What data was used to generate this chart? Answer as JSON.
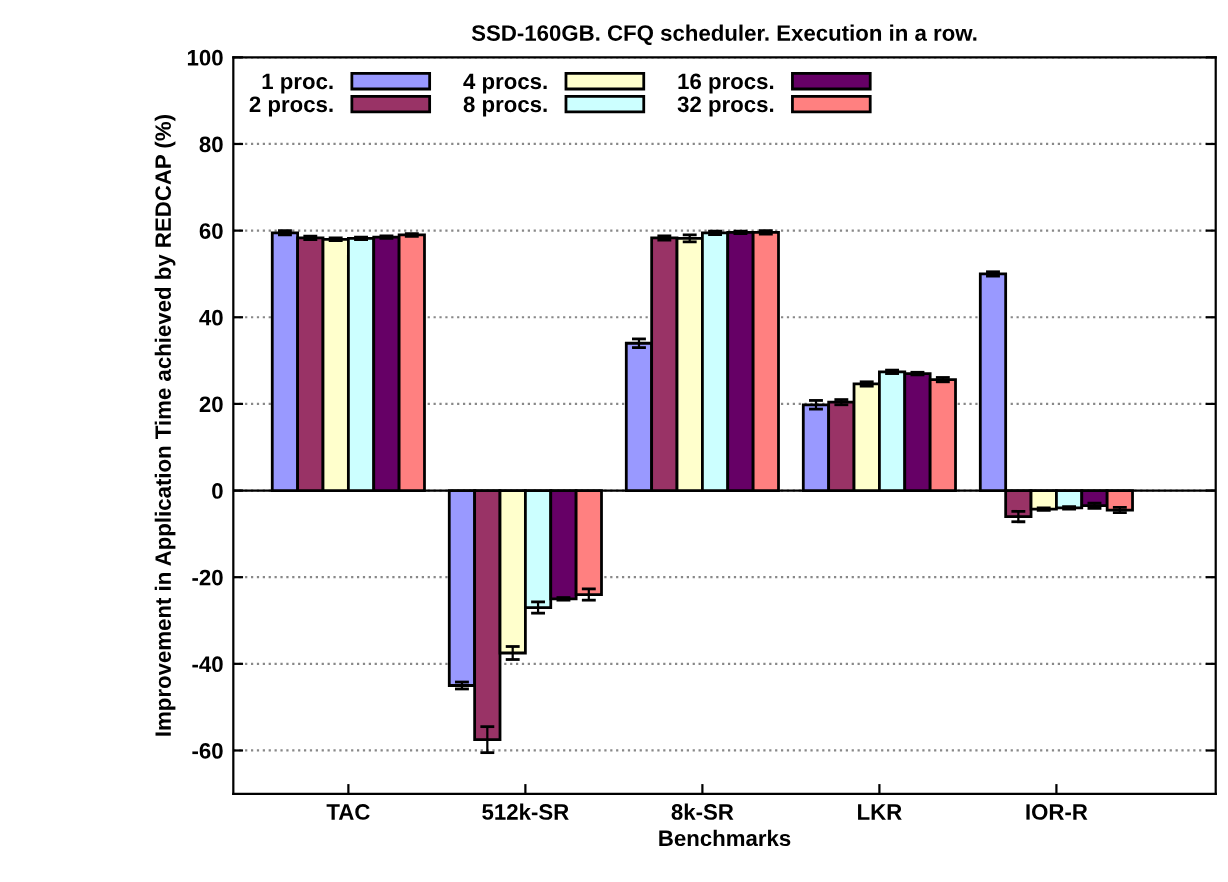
{
  "chart_data": {
    "type": "bar",
    "title": "SSD-160GB. CFQ scheduler. Execution in a row.",
    "xlabel": "Benchmarks",
    "ylabel": "Improvement in Application Time achieved by REDCAP (%)",
    "categories": [
      "TAC",
      "512k-SR",
      "8k-SR",
      "LKR",
      "IOR-R"
    ],
    "series": [
      {
        "name": "1 proc.",
        "color": "#9999ff",
        "values": [
          59.5,
          -45,
          34,
          19.8,
          50
        ],
        "errors": [
          0.5,
          0.8,
          1,
          1,
          0.5
        ]
      },
      {
        "name": "2 procs.",
        "color": "#993366",
        "values": [
          58.3,
          -57.5,
          58.3,
          20.4,
          -6
        ],
        "errors": [
          0.4,
          3,
          0.5,
          0.6,
          1.2
        ]
      },
      {
        "name": "4 procs.",
        "color": "#ffffcc",
        "values": [
          58,
          -37.5,
          58.2,
          24.6,
          -4.3
        ],
        "errors": [
          0.3,
          1.5,
          0.8,
          0.5,
          0.3
        ]
      },
      {
        "name": "8 procs.",
        "color": "#ccffff",
        "values": [
          58.2,
          -27,
          59.5,
          27.4,
          -4
        ],
        "errors": [
          0.3,
          1.3,
          0.4,
          0.4,
          0.3
        ]
      },
      {
        "name": "16 procs.",
        "color": "#660066",
        "values": [
          58.5,
          -25,
          59.6,
          27,
          -3.5
        ],
        "errors": [
          0.3,
          0.3,
          0.3,
          0.3,
          0.6
        ]
      },
      {
        "name": "32 procs.",
        "color": "#ff8080",
        "values": [
          59,
          -24,
          59.6,
          25.6,
          -4.5
        ],
        "errors": [
          0.3,
          1.3,
          0.4,
          0.5,
          0.6
        ]
      }
    ],
    "ylim": [
      -70,
      100
    ],
    "yticks": [
      -60,
      -40,
      -20,
      0,
      20,
      40,
      60,
      80,
      100
    ],
    "grid": "y",
    "legend": "top left"
  }
}
